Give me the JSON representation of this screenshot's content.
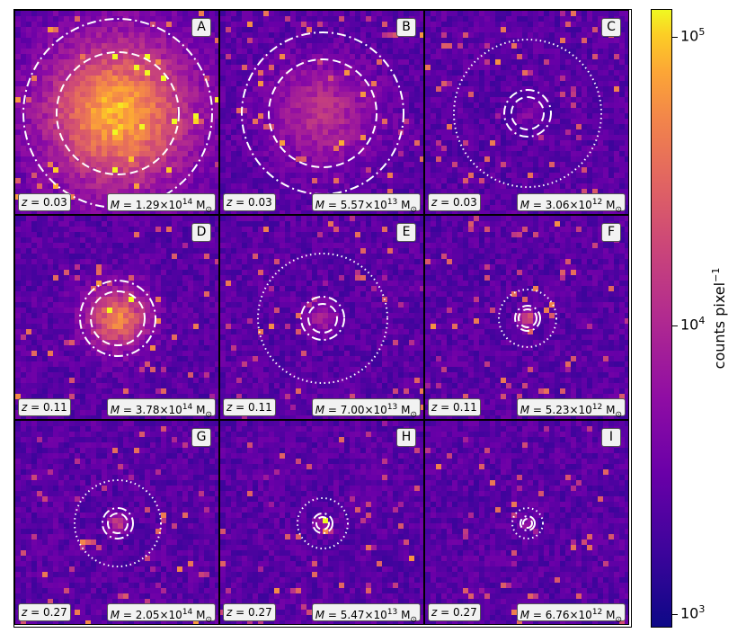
{
  "panels": [
    {
      "id": "A",
      "letter": "A",
      "z_prefix": "z",
      "z_value": "= 0.03",
      "m_prefix": "M",
      "m_value": "= 1.29×10",
      "m_exp": "14",
      "m_unit": "M",
      "core": 1.0,
      "blob": 58,
      "circles": [
        "dashdot",
        "dashed"
      ],
      "radii": [
        105,
        68
      ]
    },
    {
      "id": "B",
      "letter": "B",
      "z_prefix": "z",
      "z_value": "= 0.03",
      "m_prefix": "M",
      "m_value": "= 5.57×10",
      "m_exp": "13",
      "m_unit": "M",
      "core": 0.45,
      "blob": 40,
      "circles": [
        "dashdot",
        "dashed"
      ],
      "radii": [
        90,
        60
      ]
    },
    {
      "id": "C",
      "letter": "C",
      "z_prefix": "z",
      "z_value": "= 0.03",
      "m_prefix": "M",
      "m_value": "= 3.06×10",
      "m_exp": "12",
      "m_unit": "M",
      "core": 0.25,
      "blob": 8,
      "circles": [
        "dotted",
        "dashdot",
        "dashed"
      ],
      "radii": [
        82,
        26,
        18
      ]
    },
    {
      "id": "D",
      "letter": "D",
      "z_prefix": "z",
      "z_value": "= 0.11",
      "m_prefix": "M",
      "m_value": "= 3.78×10",
      "m_exp": "14",
      "m_unit": "M",
      "core": 0.85,
      "blob": 24,
      "circles": [
        "dashdot",
        "dashed"
      ],
      "radii": [
        42,
        30
      ]
    },
    {
      "id": "E",
      "letter": "E",
      "z_prefix": "z",
      "z_value": "= 0.11",
      "m_prefix": "M",
      "m_value": "= 7.00×10",
      "m_exp": "13",
      "m_unit": "M",
      "core": 0.35,
      "blob": 12,
      "circles": [
        "dotted",
        "dashdot",
        "dashed"
      ],
      "radii": [
        72,
        24,
        16
      ]
    },
    {
      "id": "F",
      "letter": "F",
      "z_prefix": "z",
      "z_value": "= 0.11",
      "m_prefix": "M",
      "m_value": "= 5.23×10",
      "m_exp": "12",
      "m_unit": "M",
      "core": 0.7,
      "blob": 7,
      "circles": [
        "dotted",
        "dashdot",
        "dashed"
      ],
      "radii": [
        32,
        14,
        10
      ]
    },
    {
      "id": "G",
      "letter": "G",
      "z_prefix": "z",
      "z_value": "= 0.27",
      "m_prefix": "M",
      "m_value": "= 2.05×10",
      "m_exp": "14",
      "m_unit": "M",
      "core": 0.5,
      "blob": 8,
      "circles": [
        "dotted",
        "dashdot",
        "dashed"
      ],
      "radii": [
        48,
        17,
        11
      ]
    },
    {
      "id": "H",
      "letter": "H",
      "z_prefix": "z",
      "z_value": "= 0.27",
      "m_prefix": "M",
      "m_value": "= 5.47×10",
      "m_exp": "13",
      "m_unit": "M",
      "core": 0.3,
      "blob": 6,
      "circles": [
        "dotted",
        "dashdot",
        "dashed"
      ],
      "radii": [
        28,
        11,
        7
      ]
    },
    {
      "id": "I",
      "letter": "I",
      "z_prefix": "z",
      "z_value": "= 0.27",
      "m_prefix": "M",
      "m_value": "= 6.76×10",
      "m_exp": "12",
      "m_unit": "M",
      "core": 0.35,
      "blob": 5,
      "circles": [
        "dotted",
        "dashdot",
        "dashed"
      ],
      "radii": [
        17,
        8,
        5
      ]
    }
  ],
  "colorbar": {
    "label_text": "counts pixel",
    "label_exp": "−1",
    "ticks": [
      {
        "base": "10",
        "exp": "5",
        "value": 100000
      },
      {
        "base": "10",
        "exp": "4",
        "value": 10000
      },
      {
        "base": "10",
        "exp": "3",
        "value": 1000
      }
    ],
    "min": 900,
    "max": 125000,
    "scale": "log",
    "colormap": "plasma"
  }
}
